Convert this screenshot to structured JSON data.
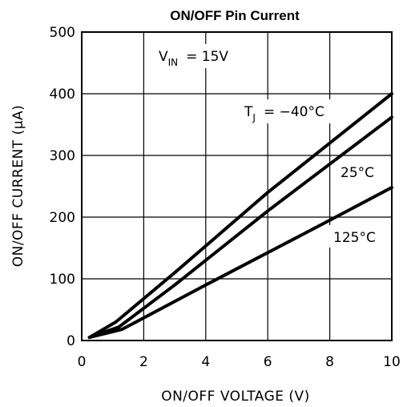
{
  "chart_data": {
    "type": "line",
    "title": "ON/OFF Pin Current",
    "xlabel": "ON/OFF VOLTAGE (V)",
    "ylabel": "ON/OFF CURRENT (μA)",
    "xlim": [
      0,
      10
    ],
    "ylim": [
      0,
      500
    ],
    "x_ticks": [
      "0",
      "2",
      "4",
      "6",
      "8",
      "10"
    ],
    "y_ticks": [
      "0",
      "100",
      "200",
      "300",
      "400",
      "500"
    ],
    "grid": true,
    "condition": {
      "symbol": "V",
      "subscript": "IN",
      "value": "= 15V"
    },
    "series": [
      {
        "name": "T_J = -40°C",
        "label_symbol": "T",
        "label_subscript": "J",
        "label_value": "= −40°C",
        "x": [
          0.25,
          1.1,
          3,
          6,
          10
        ],
        "y": [
          5,
          30,
          110,
          240,
          400
        ]
      },
      {
        "name": "25°C",
        "label_value": "25°C",
        "x": [
          0.25,
          1.2,
          3,
          6,
          10
        ],
        "y": [
          5,
          22,
          90,
          210,
          362
        ]
      },
      {
        "name": "125°C",
        "label_value": "125°C",
        "x": [
          0.25,
          1.3,
          4,
          8,
          10
        ],
        "y": [
          5,
          18,
          90,
          195,
          248
        ]
      }
    ]
  }
}
